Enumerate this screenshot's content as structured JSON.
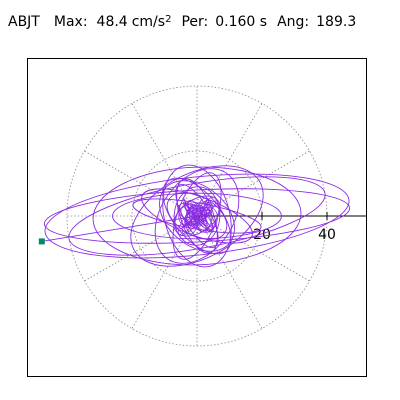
{
  "header": {
    "station": "ABJT",
    "max_label": "Max:",
    "max_value": "48.4",
    "max_unit": "cm/s",
    "max_unit_exp": "2",
    "per_label": "Per:",
    "per_value": "0.160 s",
    "ang_label": "Ang:",
    "ang_value": "189.3"
  },
  "chart_data": {
    "type": "line",
    "subtype": "polar-orbit",
    "title": "",
    "radial_ticks": [
      20,
      40
    ],
    "radial_tick_labels": [
      "20",
      "40"
    ],
    "ring_radii": [
      5,
      20,
      40
    ],
    "spoke_angles_deg": [
      0,
      30,
      60,
      90,
      120,
      150,
      180,
      210,
      240,
      270,
      300,
      330
    ],
    "axis_range": [
      -52,
      52
    ],
    "max_radius": 48.4,
    "angle_deg": 189.3,
    "grid": true,
    "colors": {
      "trace": "#8a2be2",
      "marker": "#008b66",
      "grid": "#888888",
      "axis": "#000000"
    }
  }
}
